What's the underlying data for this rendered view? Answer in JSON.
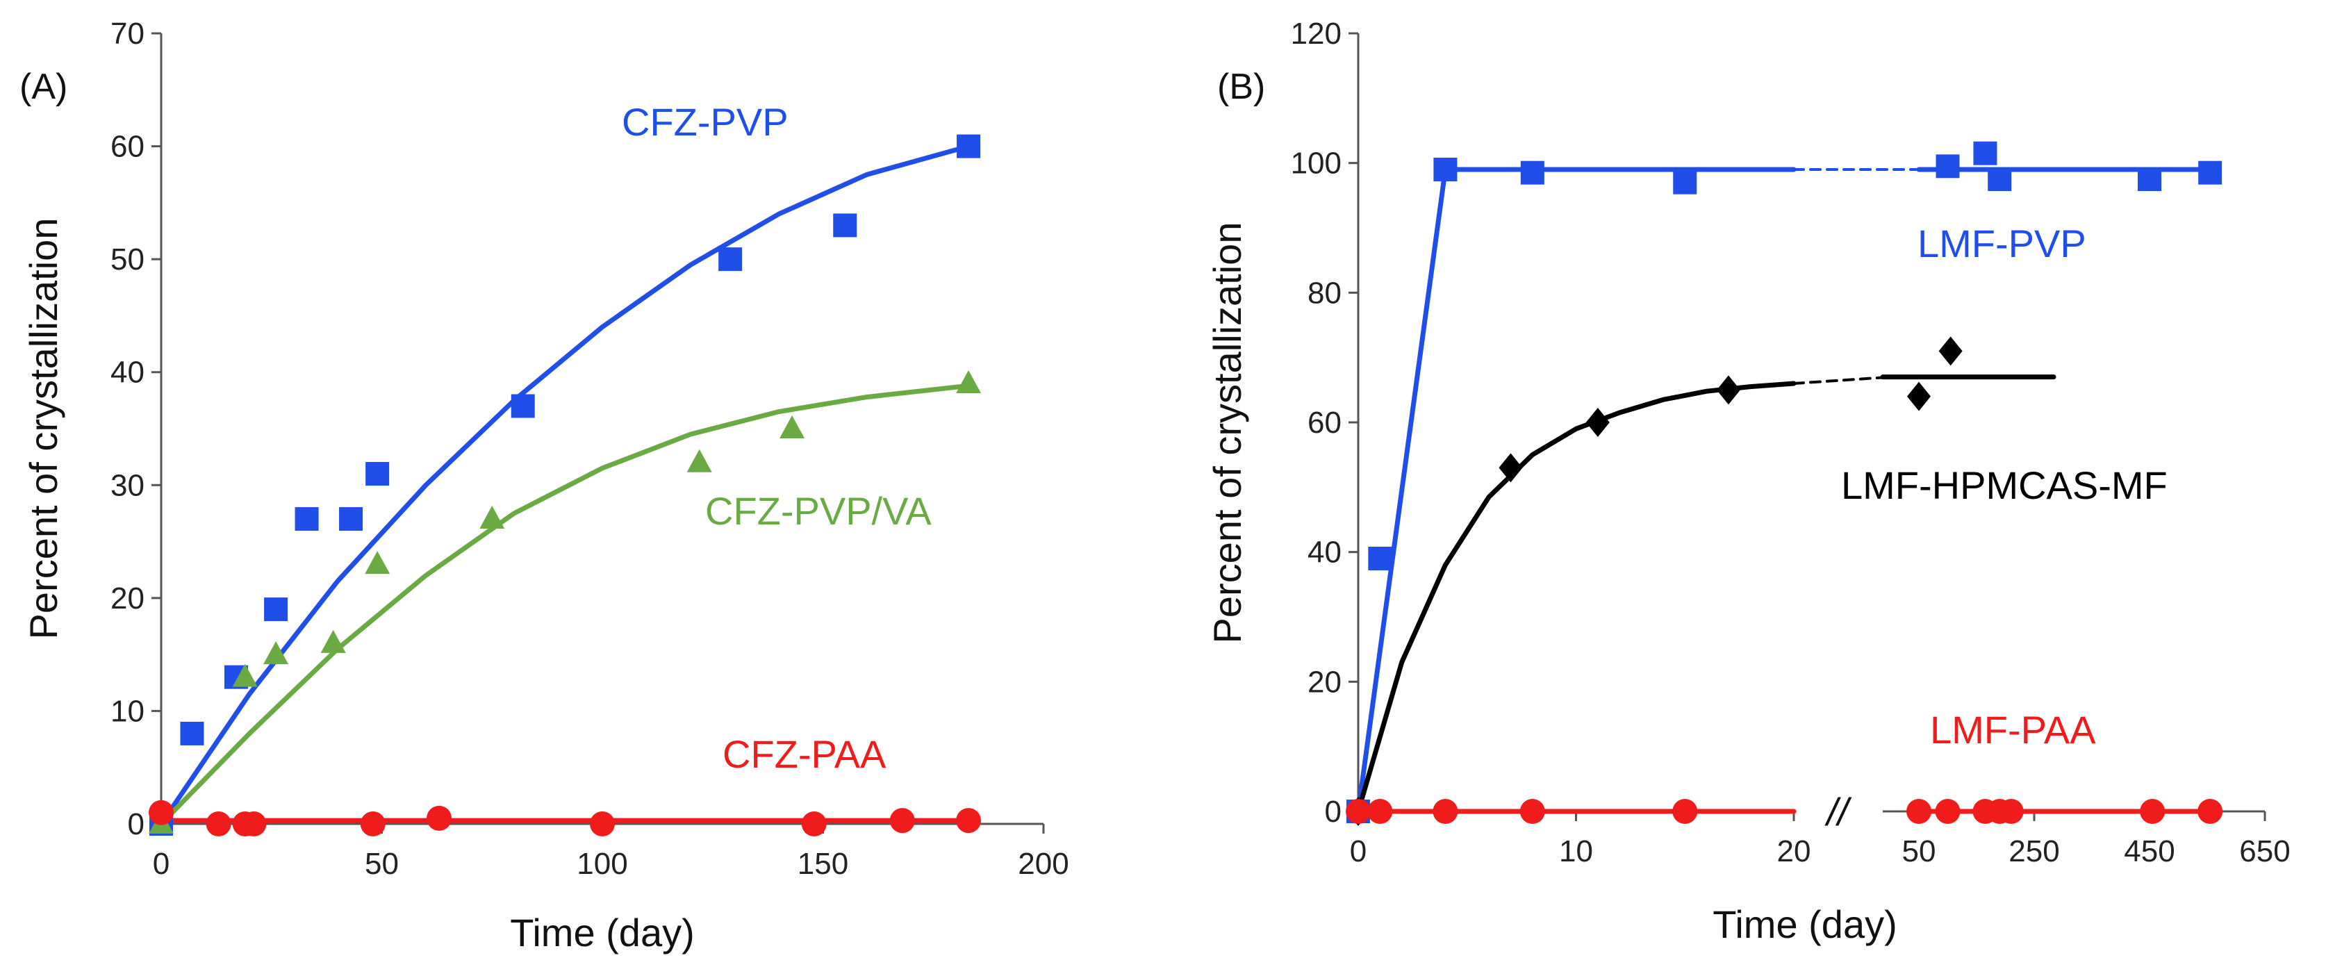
{
  "colors": {
    "blue": "#1f4fe8",
    "green": "#6aaa42",
    "red": "#f01c1c",
    "black": "#000000",
    "axis": "#555555"
  },
  "chart_data": [
    {
      "panel": "(A)",
      "type": "scatter",
      "xlabel": "Time (day)",
      "ylabel": "Percent of crystallization",
      "xlim": [
        0,
        200
      ],
      "ylim": [
        0,
        70
      ],
      "xticks": [
        0,
        50,
        100,
        150,
        200
      ],
      "yticks": [
        0,
        10,
        20,
        30,
        40,
        50,
        60,
        70
      ],
      "series": [
        {
          "name": "CFZ-PVP",
          "color": "#1f4fe8",
          "marker": "square",
          "points": [
            [
              0,
              0
            ],
            [
              7,
              8
            ],
            [
              17,
              13
            ],
            [
              26,
              19
            ],
            [
              33,
              27
            ],
            [
              43,
              27
            ],
            [
              49,
              31
            ],
            [
              82,
              37
            ],
            [
              129,
              50
            ],
            [
              155,
              53
            ],
            [
              183,
              60
            ]
          ],
          "fit": [
            [
              0,
              0
            ],
            [
              20,
              11.5
            ],
            [
              40,
              21.5
            ],
            [
              60,
              30
            ],
            [
              80,
              37.5
            ],
            [
              100,
              44
            ],
            [
              120,
              49.5
            ],
            [
              140,
              54
            ],
            [
              160,
              57.5
            ],
            [
              183,
              60
            ]
          ]
        },
        {
          "name": "CFZ-PVP/VA",
          "color": "#6aaa42",
          "marker": "triangle",
          "points": [
            [
              0,
              0
            ],
            [
              19,
              13
            ],
            [
              26,
              15
            ],
            [
              39,
              16
            ],
            [
              49,
              23
            ],
            [
              75,
              27
            ],
            [
              122,
              32
            ],
            [
              143,
              35
            ],
            [
              183,
              39
            ]
          ],
          "fit": [
            [
              0,
              0
            ],
            [
              20,
              8
            ],
            [
              40,
              15.5
            ],
            [
              60,
              22
            ],
            [
              80,
              27.5
            ],
            [
              100,
              31.5
            ],
            [
              120,
              34.5
            ],
            [
              140,
              36.5
            ],
            [
              160,
              37.8
            ],
            [
              183,
              38.8
            ]
          ]
        },
        {
          "name": "CFZ-PAA",
          "color": "#f01c1c",
          "marker": "circle",
          "points": [
            [
              0,
              1
            ],
            [
              13,
              0
            ],
            [
              19,
              0
            ],
            [
              21,
              0
            ],
            [
              48,
              0
            ],
            [
              63,
              0.5
            ],
            [
              100,
              0
            ],
            [
              148,
              0
            ],
            [
              168,
              0.3
            ],
            [
              183,
              0.3
            ]
          ],
          "fit": [
            [
              0,
              0.3
            ],
            [
              183,
              0.3
            ]
          ]
        }
      ]
    },
    {
      "panel": "(B)",
      "type": "scatter",
      "xlabel": "Time (day)",
      "ylabel": "Percent of crystallization",
      "ylim": [
        0,
        120
      ],
      "yticks": [
        0,
        20,
        40,
        60,
        80,
        100,
        120
      ],
      "x_break": "//",
      "segment1": {
        "xlim": [
          0,
          20
        ],
        "xticks": [
          0,
          10,
          20
        ]
      },
      "segment2": {
        "xlim": [
          0,
          650
        ],
        "xticks": [
          50,
          250,
          450,
          650
        ],
        "tick_labels": [
          "50",
          "250",
          "450",
          "650"
        ]
      },
      "series": [
        {
          "name": "LMF-PVP",
          "color": "#1f4fe8",
          "marker": "square",
          "points_seg1": [
            [
              0,
              0
            ],
            [
              1,
              39
            ],
            [
              4,
              99
            ],
            [
              8,
              98.5
            ],
            [
              15,
              97
            ]
          ],
          "points_seg2": [
            [
              100,
              99.5
            ],
            [
              165,
              101.5
            ],
            [
              190,
              97.5
            ],
            [
              450,
              97.5
            ],
            [
              555,
              98.5
            ]
          ],
          "fit_seg1": [
            [
              0,
              0
            ],
            [
              4,
              99
            ],
            [
              20,
              99
            ]
          ],
          "fit_seg2": [
            [
              50,
              99
            ],
            [
              555,
              99
            ]
          ]
        },
        {
          "name": "LMF-HPMCAS-MF",
          "color": "#000000",
          "marker": "diamond",
          "points_seg1": [
            [
              0,
              0
            ],
            [
              7,
              53
            ],
            [
              11,
              60
            ],
            [
              17,
              65
            ]
          ],
          "points_seg2": [
            [
              50,
              64
            ],
            [
              105,
              71
            ]
          ],
          "fit_seg1": [
            [
              0,
              0
            ],
            [
              2,
              23
            ],
            [
              4,
              38
            ],
            [
              6,
              48.5
            ],
            [
              8,
              55
            ],
            [
              10,
              59
            ],
            [
              12,
              61.5
            ],
            [
              14,
              63.5
            ],
            [
              16,
              64.8
            ],
            [
              18,
              65.5
            ],
            [
              20,
              66
            ]
          ],
          "fit_seg2": [
            [
              0,
              67
            ],
            [
              310,
              67
            ]
          ]
        },
        {
          "name": "LMF-PAA",
          "color": "#f01c1c",
          "marker": "circle",
          "points_seg1": [
            [
              0,
              0
            ],
            [
              1,
              0
            ],
            [
              4,
              0
            ],
            [
              8,
              0
            ],
            [
              15,
              0
            ]
          ],
          "points_seg2": [
            [
              50,
              0
            ],
            [
              100,
              0
            ],
            [
              165,
              0
            ],
            [
              190,
              0
            ],
            [
              210,
              0
            ],
            [
              455,
              0
            ],
            [
              555,
              0
            ]
          ],
          "fit_seg1": [
            [
              0,
              0
            ],
            [
              20,
              0
            ]
          ],
          "fit_seg2": [
            [
              50,
              0
            ],
            [
              555,
              0
            ]
          ]
        }
      ]
    }
  ]
}
